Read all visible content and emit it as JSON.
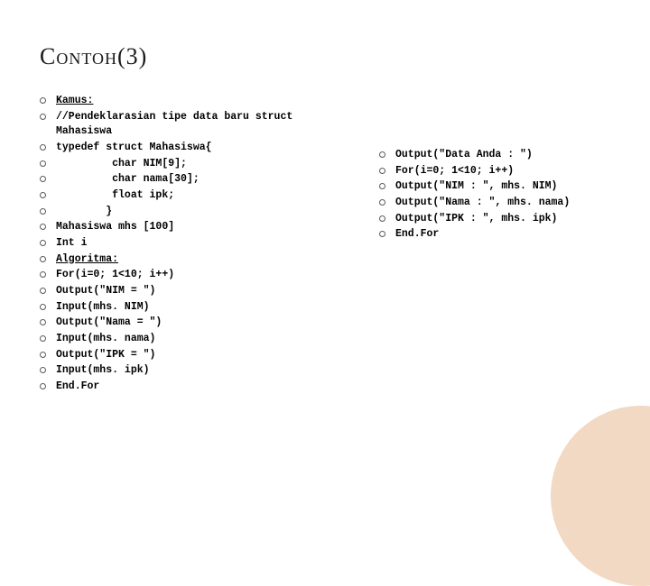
{
  "title_caps": "Contoh",
  "title_num": "(3)",
  "left_items": [
    {
      "text": "Kamus:",
      "underline": true
    },
    {
      "text": "//Pendeklarasian tipe data baru struct\nMahasiswa"
    },
    {
      "text": "typedef struct Mahasiswa{"
    },
    {
      "text": "         char NIM[9];"
    },
    {
      "text": "         char nama[30];"
    },
    {
      "text": "         float ipk;"
    },
    {
      "text": "        }"
    },
    {
      "text": "Mahasiswa mhs [100]"
    },
    {
      "text": "Int i"
    },
    {
      "text": "Algoritma:",
      "underline": true
    },
    {
      "text": "For(i=0; 1<10; i++)"
    },
    {
      "text": "Output(\"NIM = \")"
    },
    {
      "text": "Input(mhs. NIM)"
    },
    {
      "text": "Output(\"Nama = \")"
    },
    {
      "text": "Input(mhs. nama)"
    },
    {
      "text": "Output(\"IPK = \")"
    },
    {
      "text": "Input(mhs. ipk)"
    },
    {
      "text": "End.For"
    }
  ],
  "right_items": [
    {
      "text": "Output(\"Data Anda : \")"
    },
    {
      "text": "For(i=0; 1<10; i++)"
    },
    {
      "text": "Output(\"NIM : \", mhs. NIM)"
    },
    {
      "text": "Output(\"Nama : \", mhs. nama)"
    },
    {
      "text": "Output(\"IPK : \", mhs. ipk)"
    },
    {
      "text": "End.For"
    }
  ],
  "colors": {
    "circle": "#f2d9c3",
    "bullet_border": "#5a5a5a",
    "text": "#000000",
    "title": "#1a1a1a",
    "background": "#ffffff"
  }
}
